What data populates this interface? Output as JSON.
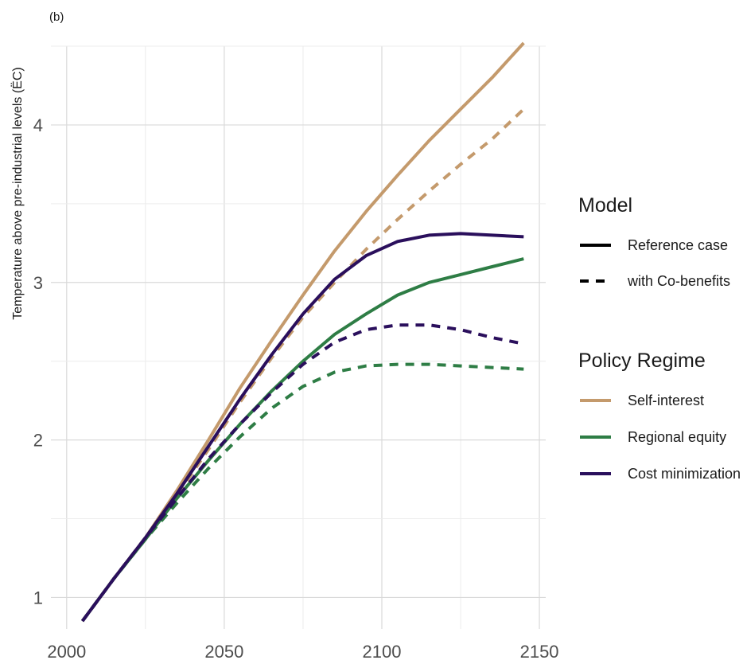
{
  "panel_label": "(b)",
  "chart_data": {
    "type": "line",
    "title": "",
    "xlabel": "",
    "ylabel": "Temperature above pre-industrial levels (ËC)",
    "xlim": [
      1995,
      2152
    ],
    "ylim": [
      0.8,
      4.5
    ],
    "x_ticks": [
      "2000",
      "2050",
      "2100",
      "2150"
    ],
    "y_ticks": [
      "1",
      "2",
      "3",
      "4"
    ],
    "grid": true,
    "legend_placement": "right",
    "legends": {
      "model": {
        "title": "Model",
        "items": [
          {
            "label": "Reference case",
            "linetype": "solid"
          },
          {
            "label": "with Co-benefits",
            "linetype": "dashed"
          }
        ]
      },
      "policy": {
        "title": "Policy Regime",
        "items": [
          {
            "label": "Self-interest",
            "color": "#c49a6c"
          },
          {
            "label": "Regional equity",
            "color": "#2e7d45"
          },
          {
            "label": "Cost minimization",
            "color": "#2a0f5c"
          }
        ]
      }
    },
    "series": [
      {
        "regime": "Self-interest",
        "model": "Reference case",
        "color": "#c49a6c",
        "dashed": false,
        "x": [
          2005,
          2015,
          2025,
          2035,
          2045,
          2055,
          2065,
          2075,
          2085,
          2095,
          2105,
          2115,
          2125,
          2135,
          2145
        ],
        "y": [
          0.85,
          1.12,
          1.38,
          1.68,
          2.0,
          2.33,
          2.63,
          2.92,
          3.2,
          3.45,
          3.68,
          3.9,
          4.1,
          4.3,
          4.52
        ]
      },
      {
        "regime": "Self-interest",
        "model": "with Co-benefits",
        "color": "#c49a6c",
        "dashed": true,
        "x": [
          2005,
          2015,
          2025,
          2035,
          2045,
          2055,
          2065,
          2075,
          2085,
          2095,
          2105,
          2115,
          2125,
          2135,
          2145
        ],
        "y": [
          0.85,
          1.12,
          1.38,
          1.65,
          1.94,
          2.24,
          2.52,
          2.78,
          3.0,
          3.21,
          3.4,
          3.58,
          3.75,
          3.91,
          4.1
        ]
      },
      {
        "regime": "Cost minimization",
        "model": "Reference case",
        "color": "#2a0f5c",
        "dashed": false,
        "x": [
          2005,
          2015,
          2025,
          2035,
          2045,
          2055,
          2065,
          2075,
          2085,
          2095,
          2105,
          2115,
          2125,
          2135,
          2145
        ],
        "y": [
          0.85,
          1.12,
          1.38,
          1.66,
          1.96,
          2.26,
          2.54,
          2.8,
          3.02,
          3.17,
          3.26,
          3.3,
          3.31,
          3.3,
          3.29
        ]
      },
      {
        "regime": "Cost minimization",
        "model": "with Co-benefits",
        "color": "#2a0f5c",
        "dashed": true,
        "x": [
          2005,
          2015,
          2025,
          2035,
          2045,
          2055,
          2065,
          2075,
          2085,
          2095,
          2105,
          2115,
          2125,
          2135,
          2145
        ],
        "y": [
          0.85,
          1.12,
          1.38,
          1.63,
          1.88,
          2.1,
          2.3,
          2.48,
          2.62,
          2.7,
          2.73,
          2.73,
          2.7,
          2.65,
          2.61
        ]
      },
      {
        "regime": "Regional equity",
        "model": "Reference case",
        "color": "#2e7d45",
        "dashed": false,
        "x": [
          2005,
          2015,
          2025,
          2035,
          2045,
          2055,
          2065,
          2075,
          2085,
          2095,
          2105,
          2115,
          2125,
          2135,
          2145
        ],
        "y": [
          0.85,
          1.12,
          1.37,
          1.63,
          1.87,
          2.1,
          2.31,
          2.5,
          2.67,
          2.8,
          2.92,
          3.0,
          3.05,
          3.1,
          3.15
        ]
      },
      {
        "regime": "Regional equity",
        "model": "with Co-benefits",
        "color": "#2e7d45",
        "dashed": true,
        "x": [
          2005,
          2015,
          2025,
          2035,
          2045,
          2055,
          2065,
          2075,
          2085,
          2095,
          2105,
          2115,
          2125,
          2135,
          2145
        ],
        "y": [
          0.85,
          1.12,
          1.37,
          1.6,
          1.82,
          2.02,
          2.2,
          2.34,
          2.43,
          2.47,
          2.48,
          2.48,
          2.47,
          2.46,
          2.45
        ]
      }
    ]
  }
}
